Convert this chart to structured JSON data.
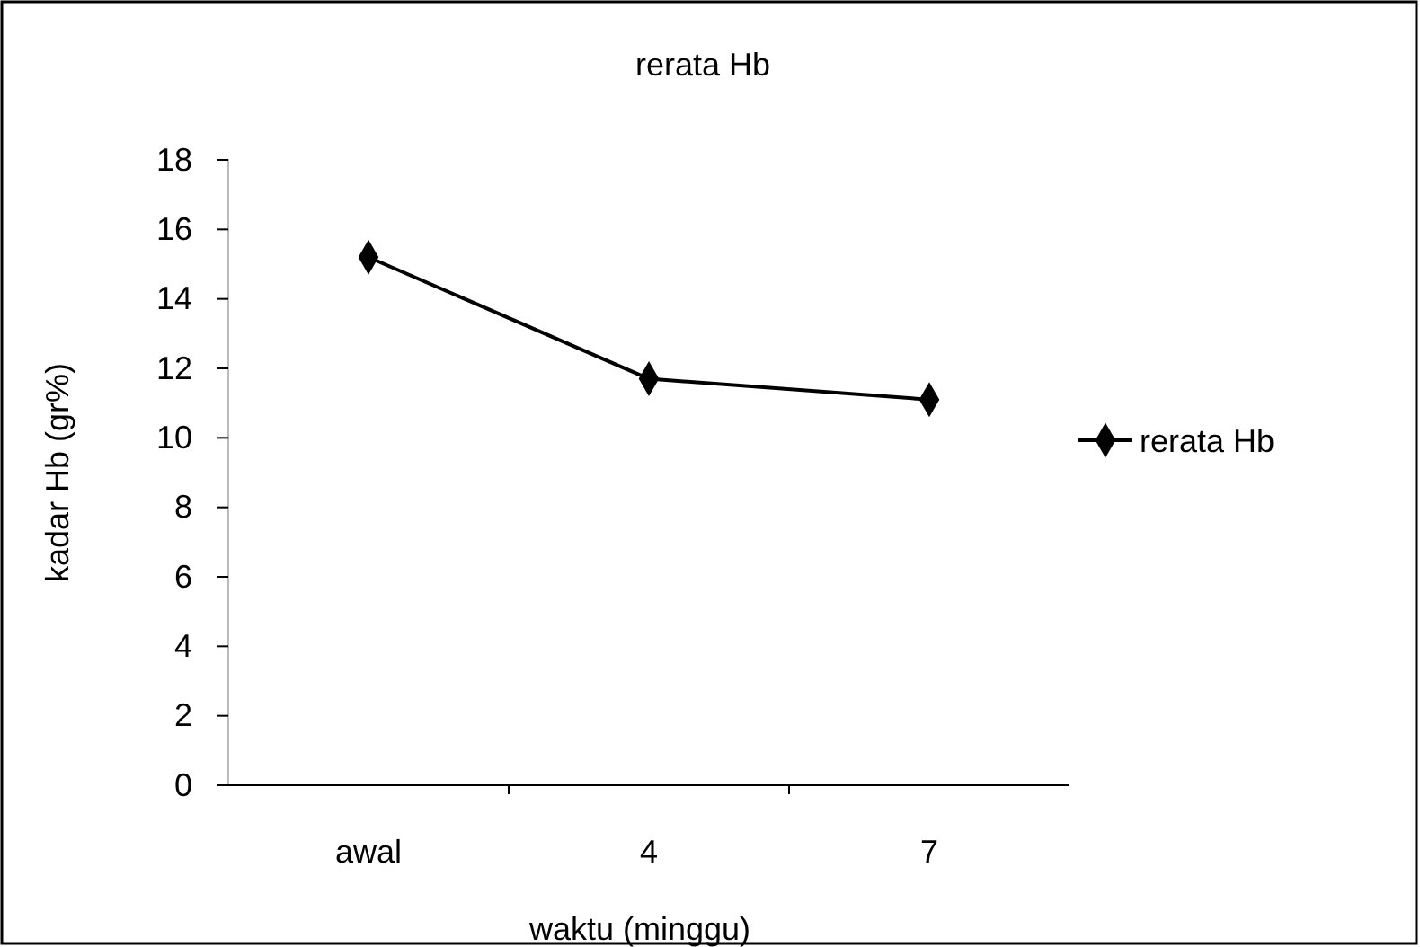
{
  "chart_data": {
    "type": "line",
    "title": "rerata Hb",
    "xlabel": "waktu (minggu)",
    "ylabel": "kadar Hb (gr%)",
    "categories": [
      "awal",
      "4",
      "7"
    ],
    "series": [
      {
        "name": "rerata Hb",
        "color": "#000000",
        "values": [
          15.2,
          11.7,
          11.1
        ]
      }
    ],
    "ylim": [
      0,
      18
    ],
    "yticks": [
      0,
      2,
      4,
      6,
      8,
      10,
      12,
      14,
      16,
      18
    ],
    "grid": false,
    "legend": "right",
    "marker": "diamond",
    "line_style": "solid"
  }
}
